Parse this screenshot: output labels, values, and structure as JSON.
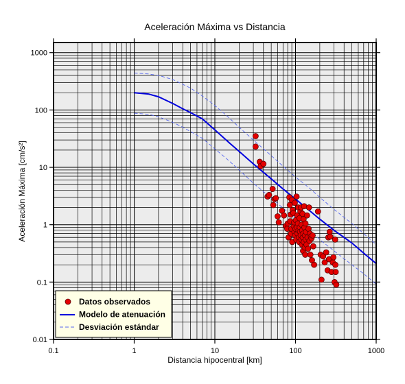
{
  "chart_data": {
    "type": "scatter",
    "title": "Aceleración Máxima vs Distancia",
    "xlabel": "Distancia hipocentral [km]",
    "ylabel": "Aceleración Máxima [cm/s²]",
    "xscale": "log",
    "yscale": "log",
    "xlim": [
      0.1,
      1000
    ],
    "ylim": [
      0.01,
      1500
    ],
    "xticks": [
      "0.1",
      "1",
      "10",
      "100",
      "1000"
    ],
    "yticks": [
      "0.01",
      "0.1",
      "1",
      "10",
      "100",
      "1000"
    ],
    "grid": true,
    "legend_position": "bottom-left",
    "colors": {
      "plot_background": "#ececec",
      "points": "#e30000",
      "model": "#0000dd",
      "deviation": "#5566ee",
      "legend_background": "#ffffe6"
    },
    "legend": [
      {
        "label": "Datos observados",
        "kind": "marker"
      },
      {
        "label": "Modelo de atenuación",
        "kind": "line"
      },
      {
        "label": "Desviación estándar",
        "kind": "dashed"
      }
    ],
    "series": [
      {
        "name": "Datos observados",
        "kind": "scatter",
        "points": [
          [
            32,
            35
          ],
          [
            32,
            23
          ],
          [
            36,
            12.5
          ],
          [
            37,
            10.5
          ],
          [
            40,
            11.5
          ],
          [
            45,
            3.1
          ],
          [
            47,
            3.3
          ],
          [
            52,
            4.2
          ],
          [
            53,
            2.2
          ],
          [
            55,
            2.8
          ],
          [
            57,
            2.9
          ],
          [
            60,
            1.4
          ],
          [
            62,
            1.1
          ],
          [
            68,
            1.75
          ],
          [
            72,
            1.45
          ],
          [
            76,
            0.95
          ],
          [
            79,
            0.85
          ],
          [
            80,
            1.05
          ],
          [
            82,
            0.6
          ],
          [
            84,
            3.0
          ],
          [
            85,
            2.2
          ],
          [
            86,
            1.15
          ],
          [
            87,
            1.5
          ],
          [
            88,
            0.7
          ],
          [
            89,
            0.85
          ],
          [
            90,
            2.7
          ],
          [
            91,
            0.5
          ],
          [
            92,
            1.8
          ],
          [
            94,
            1.6
          ],
          [
            95,
            0.95
          ],
          [
            96,
            1.1
          ],
          [
            97,
            0.75
          ],
          [
            98,
            2.4
          ],
          [
            99,
            0.65
          ],
          [
            100,
            0.85
          ],
          [
            101,
            1.2
          ],
          [
            102,
            0.55
          ],
          [
            103,
            3.1
          ],
          [
            104,
            0.9
          ],
          [
            105,
            1.45
          ],
          [
            106,
            0.7
          ],
          [
            107,
            1.05
          ],
          [
            108,
            2.0
          ],
          [
            109,
            0.8
          ],
          [
            110,
            0.6
          ],
          [
            111,
            0.5
          ],
          [
            112,
            1.3
          ],
          [
            113,
            0.9
          ],
          [
            114,
            0.75
          ],
          [
            115,
            1.7
          ],
          [
            116,
            0.65
          ],
          [
            117,
            2.0
          ],
          [
            118,
            0.55
          ],
          [
            119,
            1.0
          ],
          [
            120,
            0.45
          ],
          [
            121,
            0.8
          ],
          [
            122,
            1.55
          ],
          [
            123,
            0.6
          ],
          [
            124,
            0.35
          ],
          [
            125,
            0.7
          ],
          [
            126,
            1.25
          ],
          [
            127,
            0.5
          ],
          [
            128,
            2.1
          ],
          [
            129,
            0.9
          ],
          [
            130,
            0.4
          ],
          [
            131,
            0.65
          ],
          [
            132,
            0.3
          ],
          [
            133,
            1.05
          ],
          [
            134,
            0.55
          ],
          [
            135,
            0.75
          ],
          [
            137,
            0.45
          ],
          [
            139,
            1.45
          ],
          [
            141,
            0.6
          ],
          [
            143,
            0.38
          ],
          [
            145,
            0.85
          ],
          [
            147,
            2.0
          ],
          [
            149,
            0.52
          ],
          [
            151,
            0.7
          ],
          [
            153,
            0.3
          ],
          [
            155,
            0.62
          ],
          [
            158,
            0.58
          ],
          [
            160,
            0.24
          ],
          [
            163,
            0.65
          ],
          [
            166,
            0.42
          ],
          [
            170,
            0.2
          ],
          [
            190,
            1.7
          ],
          [
            205,
            0.3
          ],
          [
            210,
            0.11
          ],
          [
            220,
            0.28
          ],
          [
            230,
            0.22
          ],
          [
            240,
            0.33
          ],
          [
            250,
            0.16
          ],
          [
            255,
            0.6
          ],
          [
            260,
            0.25
          ],
          [
            265,
            0.75
          ],
          [
            270,
            0.62
          ],
          [
            280,
            0.15
          ],
          [
            290,
            0.22
          ],
          [
            295,
            0.27
          ],
          [
            305,
            0.1
          ],
          [
            310,
            0.55
          ],
          [
            312,
            0.2
          ],
          [
            315,
            0.15
          ],
          [
            320,
            0.09
          ]
        ]
      },
      {
        "name": "Modelo de atenuación",
        "kind": "line",
        "points": [
          [
            1,
            200
          ],
          [
            1.5,
            190
          ],
          [
            2,
            170
          ],
          [
            3,
            130
          ],
          [
            4,
            105
          ],
          [
            5,
            90
          ],
          [
            7,
            70
          ],
          [
            10,
            45
          ],
          [
            15,
            27
          ],
          [
            20,
            19
          ],
          [
            30,
            11.5
          ],
          [
            50,
            6.3
          ],
          [
            70,
            4.2
          ],
          [
            100,
            2.8
          ],
          [
            150,
            1.75
          ],
          [
            200,
            1.25
          ],
          [
            300,
            0.8
          ],
          [
            500,
            0.48
          ],
          [
            700,
            0.32
          ],
          [
            1000,
            0.21
          ]
        ]
      },
      {
        "name": "Desviación estándar",
        "kind": "dashed",
        "points": [
          [
            1,
            440
          ],
          [
            1.5,
            425
          ],
          [
            2,
            400
          ],
          [
            3,
            340
          ],
          [
            4,
            280
          ],
          [
            5,
            240
          ],
          [
            7,
            175
          ],
          [
            10,
            120
          ],
          [
            15,
            73
          ],
          [
            20,
            50
          ],
          [
            30,
            30
          ],
          [
            50,
            16
          ],
          [
            70,
            10.5
          ],
          [
            100,
            6.8
          ],
          [
            150,
            4.3
          ],
          [
            200,
            3.0
          ],
          [
            300,
            1.85
          ],
          [
            500,
            1.05
          ],
          [
            700,
            0.7
          ],
          [
            1000,
            0.45
          ]
        ]
      },
      {
        "name": "Desviación estándar",
        "kind": "dashed",
        "points": [
          [
            1,
            88
          ],
          [
            1.5,
            84
          ],
          [
            2,
            76
          ],
          [
            3,
            61
          ],
          [
            4,
            50
          ],
          [
            5,
            42
          ],
          [
            7,
            32
          ],
          [
            10,
            21
          ],
          [
            15,
            13
          ],
          [
            20,
            9
          ],
          [
            30,
            5.3
          ],
          [
            50,
            2.9
          ],
          [
            70,
            1.95
          ],
          [
            100,
            1.28
          ],
          [
            150,
            0.8
          ],
          [
            200,
            0.55
          ],
          [
            300,
            0.35
          ],
          [
            500,
            0.2
          ],
          [
            700,
            0.14
          ],
          [
            1000,
            0.092
          ]
        ]
      }
    ]
  }
}
